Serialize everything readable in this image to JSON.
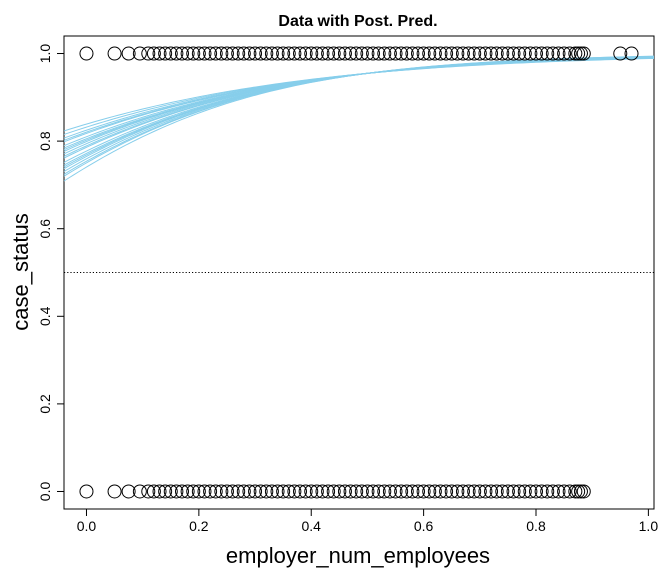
{
  "chart_data": {
    "type": "scatter",
    "title": "Data with Post. Pred.",
    "xlabel": "employer_num_employees",
    "ylabel": "case_status",
    "xlim": [
      -0.04,
      1.01
    ],
    "ylim": [
      -0.04,
      1.04
    ],
    "x_ticks": [
      "0.0",
      "0.2",
      "0.4",
      "0.6",
      "0.8",
      "1.0"
    ],
    "y_ticks": [
      "0.0",
      "0.2",
      "0.4",
      "0.6",
      "0.8",
      "1.0"
    ],
    "x_tick_values": [
      0,
      0.2,
      0.4,
      0.6,
      0.8,
      1.0
    ],
    "y_tick_values": [
      0,
      0.2,
      0.4,
      0.6,
      0.8,
      1.0
    ],
    "grid": false,
    "threshold_line": {
      "y": 0.5,
      "style": "dotted",
      "color": "#000000"
    },
    "points": {
      "marker": "open-circle",
      "color": "#000000",
      "y1_x": [
        0.0,
        0.05,
        0.075,
        0.095,
        0.11,
        0.12,
        0.13,
        0.14,
        0.15,
        0.16,
        0.17,
        0.18,
        0.19,
        0.2,
        0.21,
        0.22,
        0.23,
        0.24,
        0.25,
        0.26,
        0.27,
        0.28,
        0.29,
        0.3,
        0.31,
        0.32,
        0.33,
        0.34,
        0.35,
        0.36,
        0.37,
        0.38,
        0.39,
        0.4,
        0.41,
        0.42,
        0.43,
        0.44,
        0.45,
        0.46,
        0.47,
        0.48,
        0.49,
        0.5,
        0.51,
        0.52,
        0.53,
        0.54,
        0.55,
        0.56,
        0.57,
        0.58,
        0.59,
        0.6,
        0.61,
        0.62,
        0.63,
        0.64,
        0.65,
        0.66,
        0.67,
        0.68,
        0.69,
        0.7,
        0.71,
        0.72,
        0.73,
        0.74,
        0.75,
        0.76,
        0.77,
        0.78,
        0.79,
        0.8,
        0.81,
        0.82,
        0.83,
        0.84,
        0.85,
        0.86,
        0.87,
        0.875,
        0.88,
        0.885,
        0.95,
        0.97
      ],
      "y0_x": [
        0.0,
        0.05,
        0.075,
        0.095,
        0.11,
        0.12,
        0.13,
        0.14,
        0.15,
        0.16,
        0.17,
        0.18,
        0.19,
        0.2,
        0.21,
        0.22,
        0.23,
        0.24,
        0.25,
        0.26,
        0.27,
        0.28,
        0.29,
        0.3,
        0.31,
        0.32,
        0.33,
        0.34,
        0.35,
        0.36,
        0.37,
        0.38,
        0.39,
        0.4,
        0.41,
        0.42,
        0.43,
        0.44,
        0.45,
        0.46,
        0.47,
        0.48,
        0.49,
        0.5,
        0.51,
        0.52,
        0.53,
        0.54,
        0.55,
        0.56,
        0.57,
        0.58,
        0.59,
        0.6,
        0.61,
        0.62,
        0.63,
        0.64,
        0.65,
        0.66,
        0.67,
        0.68,
        0.69,
        0.7,
        0.71,
        0.72,
        0.73,
        0.74,
        0.75,
        0.76,
        0.77,
        0.78,
        0.79,
        0.8,
        0.81,
        0.82,
        0.83,
        0.84,
        0.85,
        0.86,
        0.87,
        0.875,
        0.88,
        0.885
      ]
    },
    "posterior_curves": {
      "type": "line",
      "color": "#87ceeb",
      "model": "logistic",
      "x_range": [
        -0.04,
        1.01
      ],
      "draws": [
        {
          "intercept": 1.05,
          "slope": 4.0
        },
        {
          "intercept": 1.1,
          "slope": 3.9
        },
        {
          "intercept": 1.15,
          "slope": 3.8
        },
        {
          "intercept": 1.2,
          "slope": 3.7
        },
        {
          "intercept": 1.25,
          "slope": 3.6
        },
        {
          "intercept": 1.3,
          "slope": 3.5
        },
        {
          "intercept": 1.35,
          "slope": 3.4
        },
        {
          "intercept": 1.4,
          "slope": 3.3
        },
        {
          "intercept": 1.45,
          "slope": 3.2
        },
        {
          "intercept": 1.5,
          "slope": 3.1
        },
        {
          "intercept": 1.55,
          "slope": 3.0
        },
        {
          "intercept": 1.6,
          "slope": 2.9
        },
        {
          "intercept": 1.65,
          "slope": 2.8
        },
        {
          "intercept": 1.12,
          "slope": 3.85
        },
        {
          "intercept": 1.22,
          "slope": 3.65
        },
        {
          "intercept": 1.32,
          "slope": 3.45
        },
        {
          "intercept": 1.42,
          "slope": 3.25
        },
        {
          "intercept": 1.52,
          "slope": 3.05
        },
        {
          "intercept": 1.18,
          "slope": 3.75
        },
        {
          "intercept": 1.38,
          "slope": 3.35
        }
      ]
    }
  }
}
